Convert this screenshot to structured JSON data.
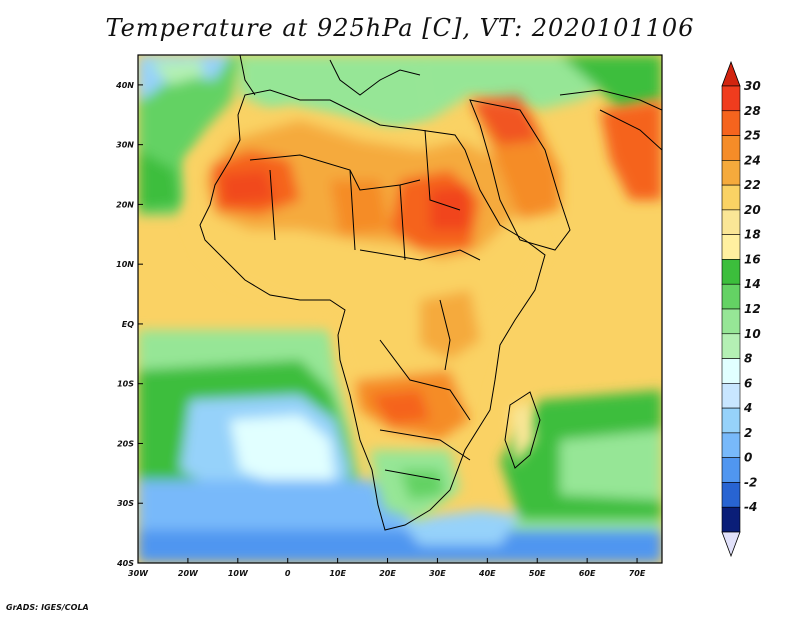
{
  "title": "Temperature at 925hPa [C], VT: 2020101106",
  "credit": "GrADS: IGES/COLA",
  "axes": {
    "lon_labels": [
      "30W",
      "20W",
      "10W",
      "0",
      "10E",
      "20E",
      "30E",
      "40E",
      "50E",
      "60E",
      "70E"
    ],
    "lat_labels": [
      "40N",
      "30N",
      "20N",
      "10N",
      "EQ",
      "10S",
      "20S",
      "30S",
      "40S"
    ]
  },
  "colorbar": {
    "labels": [
      "30",
      "28",
      "25",
      "24",
      "22",
      "20",
      "18",
      "16",
      "14",
      "12",
      "10",
      "8",
      "6",
      "4",
      "2",
      "0",
      "-2",
      "-4"
    ],
    "colors": [
      "#f03c1e",
      "#f5641e",
      "#f58c28",
      "#f5aa3c",
      "#fad264",
      "#fae696",
      "#fff0a0",
      "#3cbe3c",
      "#64d264",
      "#96e696",
      "#b4f0b4",
      "#e1ffff",
      "#c8e6ff",
      "#96d2fa",
      "#78b9fa",
      "#5096f0",
      "#2864d2",
      "#0a1e78"
    ],
    "top_arrow_color": "#d2240f",
    "bottom_arrow_color": "#e1e1fa"
  },
  "field_colors": {
    "ocean_cool": "#96d2fa",
    "ocean_mild": "#96e696",
    "land_hot": "#f5641e",
    "land_warm": "#fad264"
  }
}
